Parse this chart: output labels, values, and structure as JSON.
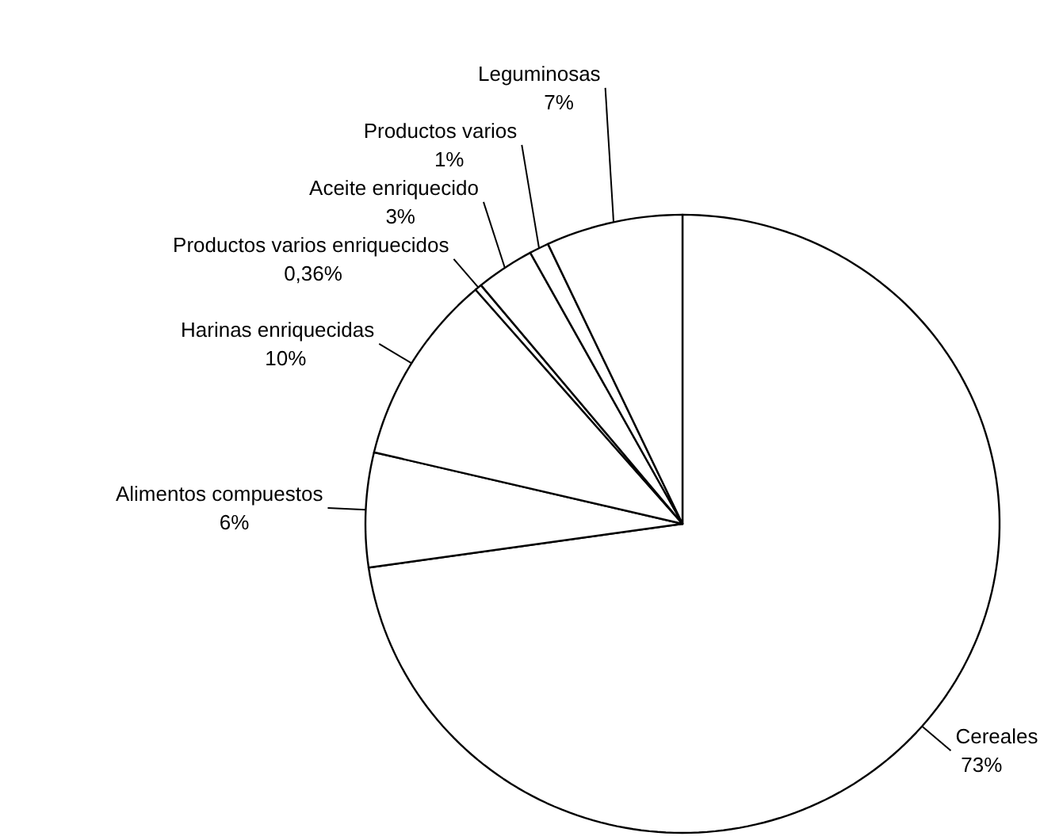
{
  "chart_data": {
    "type": "pie",
    "categories": [
      "Cereales",
      "Alimentos compuestos",
      "Harinas enriquecidas",
      "Productos varios enriquecidos",
      "Aceite enriquecido",
      "Productos varios",
      "Leguminosas"
    ],
    "values": [
      73,
      6,
      10,
      0.36,
      3,
      1,
      7
    ],
    "value_labels": [
      "73%",
      "6%",
      "10%",
      "0,36%",
      "3%",
      "1%",
      "7%"
    ],
    "colors": [
      "#ffffff",
      "#ffffff",
      "#ffffff",
      "#ffffff",
      "#ffffff",
      "#ffffff",
      "#ffffff"
    ]
  }
}
